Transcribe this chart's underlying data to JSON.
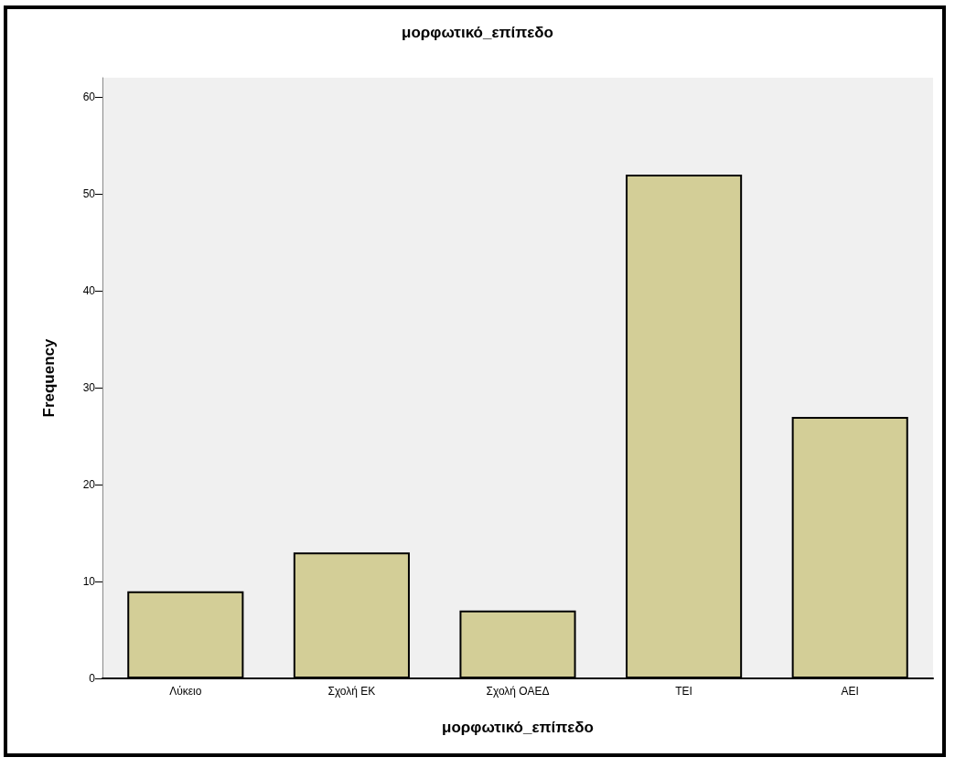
{
  "chart_data": {
    "type": "bar",
    "title": "μορφωτικό_επίπεδο",
    "xlabel": "μορφωτικό_επίπεδο",
    "ylabel": "Frequency",
    "categories": [
      "Λύκειο",
      "Σχολή ΕΚ",
      "Σχολή ΟΑΕΔ",
      "ΤΕΙ",
      "ΑΕΙ"
    ],
    "values": [
      9,
      13,
      7,
      52,
      27
    ],
    "color": "#d3ce97",
    "ylim": [
      0,
      62
    ],
    "yticks": [
      0,
      10,
      20,
      30,
      40,
      50,
      60
    ],
    "grid": false
  }
}
